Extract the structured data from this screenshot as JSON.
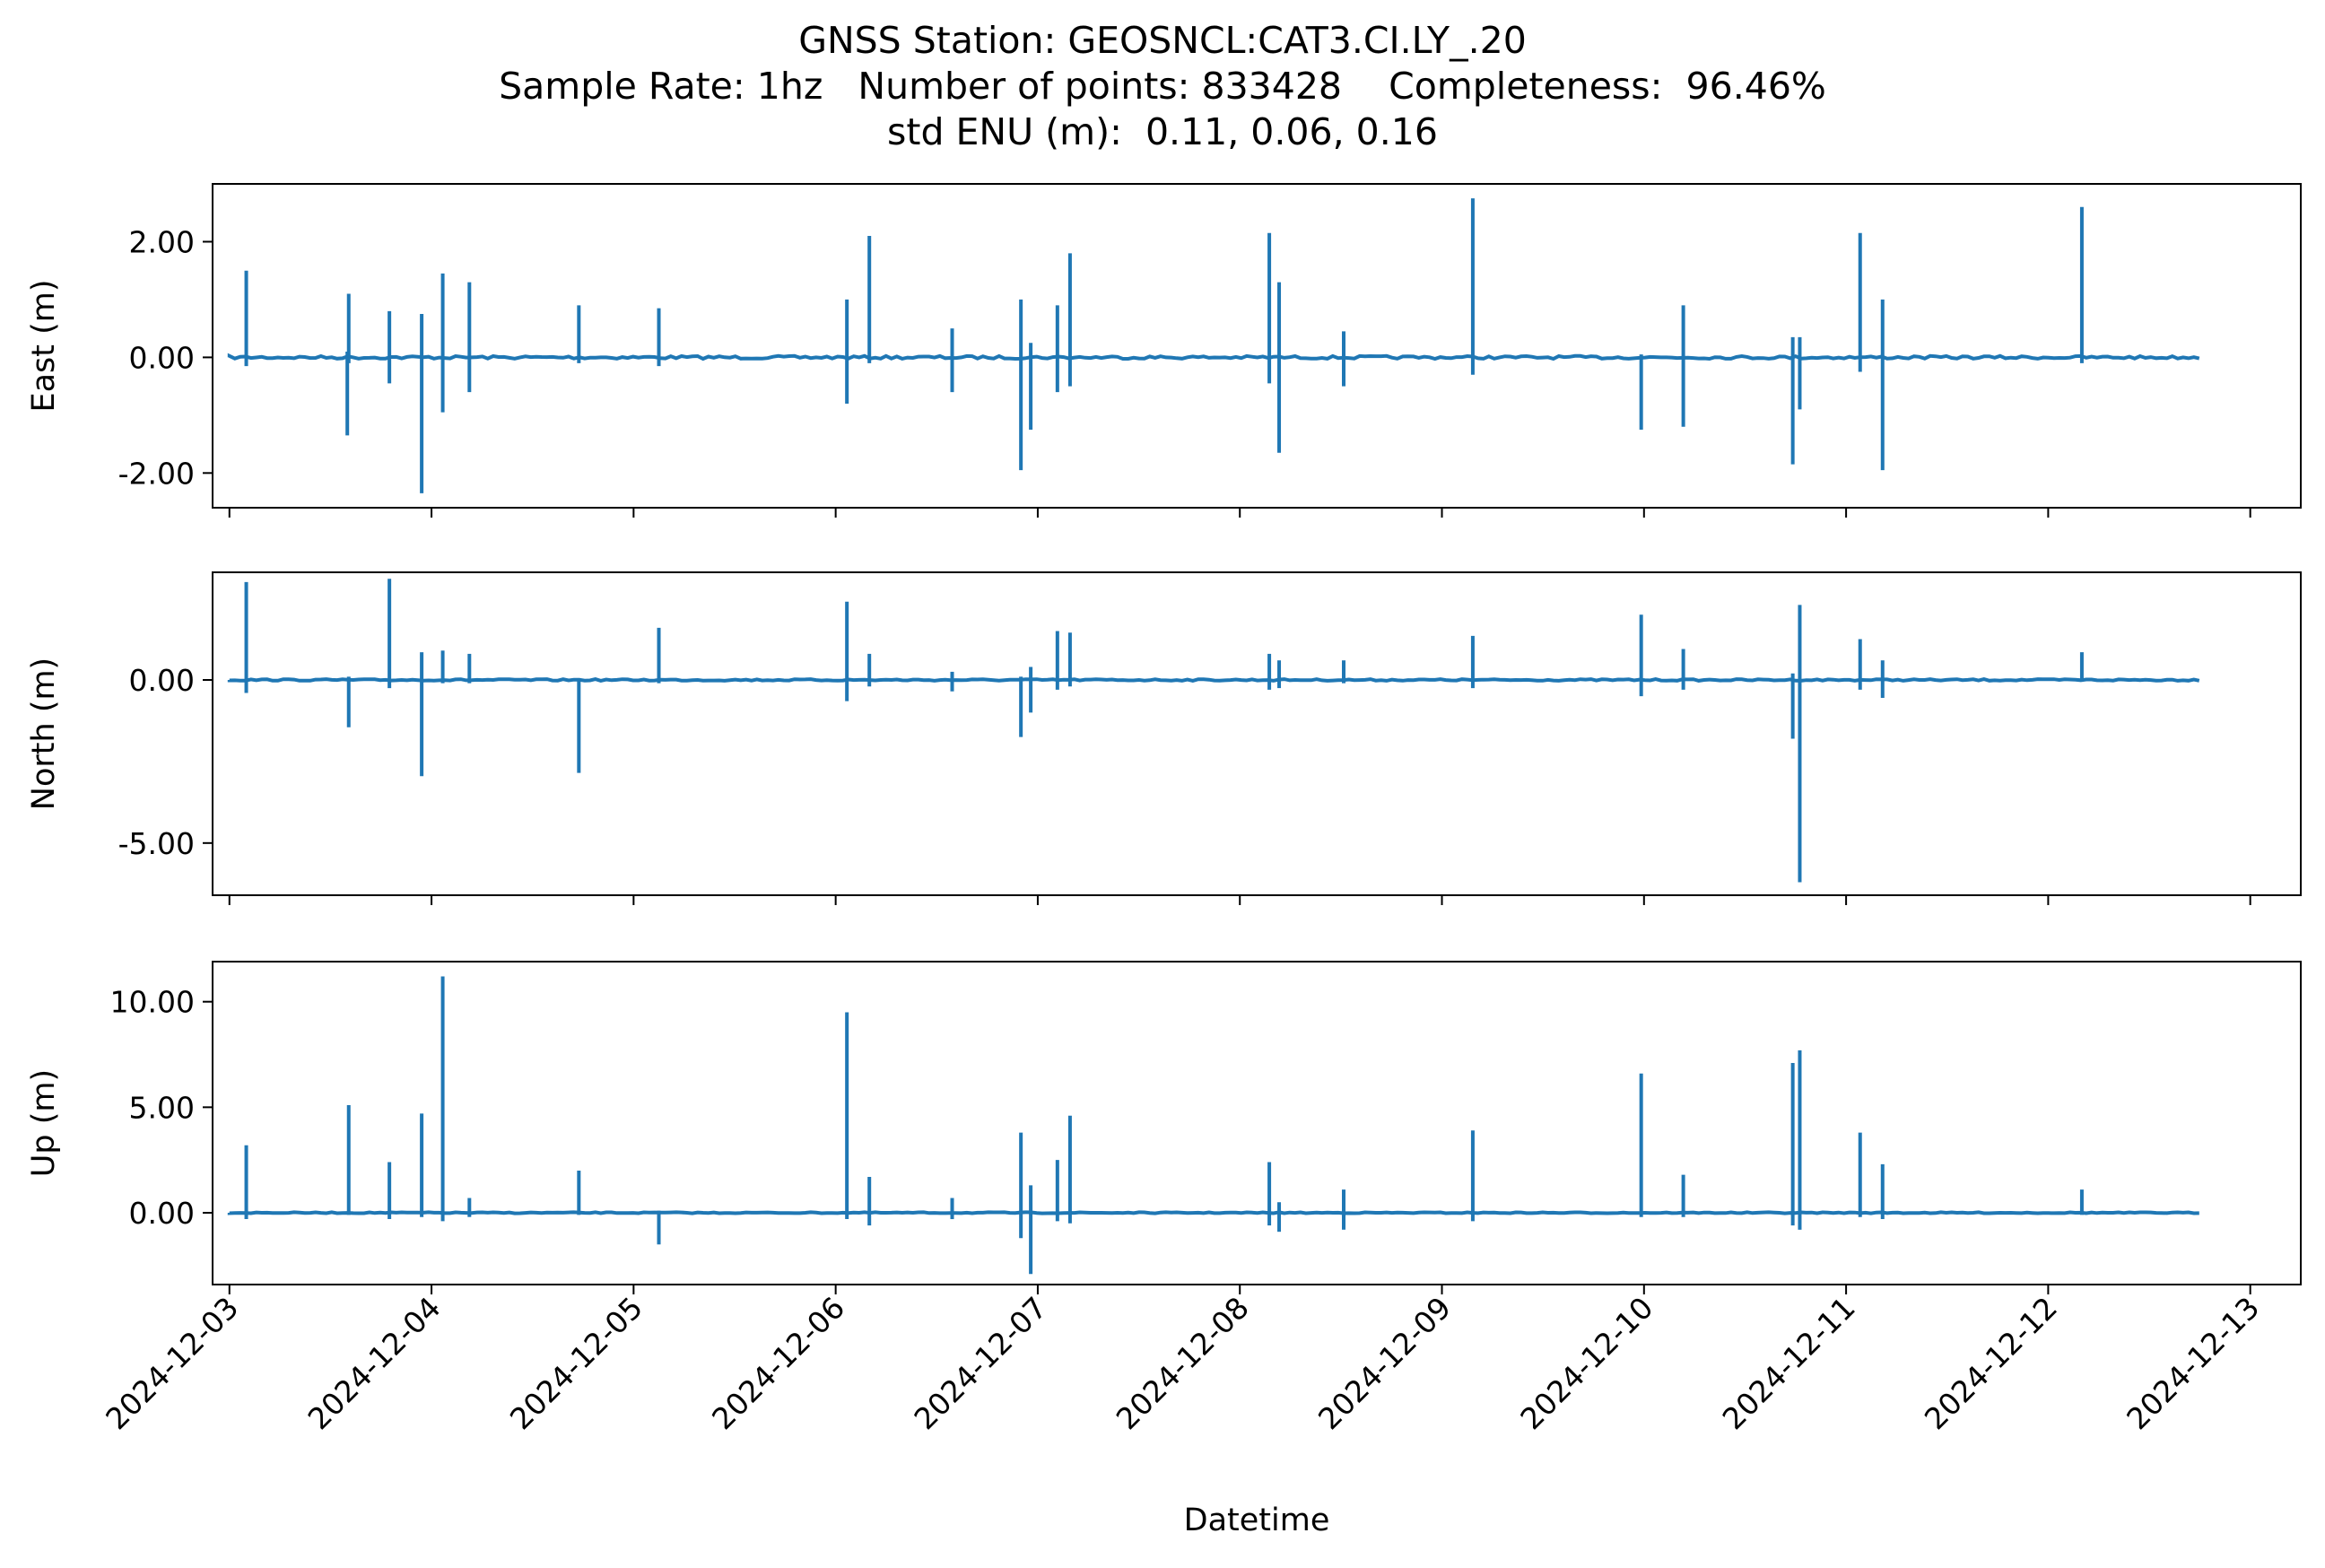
{
  "title_lines": [
    "GNSS Station: GEOSNCL:CAT3.CI.LY_.20",
    "Sample Rate: 1hz   Number of points: 833428    Completeness:  96.46%",
    "std ENU (m):  0.11, 0.06, 0.16"
  ],
  "chart_data": {
    "type": "line",
    "series_color": "#1f77b4",
    "xlabel": "Datetime",
    "x_range": [
      "2024-12-02T22:00",
      "2024-12-13T06:00"
    ],
    "x_ticks": [
      "2024-12-03",
      "2024-12-04",
      "2024-12-05",
      "2024-12-06",
      "2024-12-07",
      "2024-12-08",
      "2024-12-09",
      "2024-12-10",
      "2024-12-11",
      "2024-12-12",
      "2024-12-13"
    ],
    "grid": false,
    "panels": [
      {
        "ylabel": "East (m)",
        "ylim": [
          -2.6,
          3.0
        ],
        "y_ticks": [
          2.0,
          0.0,
          -2.0
        ],
        "y_tick_labels": [
          "2.00",
          "0.00",
          "-2.00"
        ],
        "spikes": [
          {
            "t": "2024-12-03T02:00",
            "hi": 1.5,
            "lo": -0.15
          },
          {
            "t": "2024-12-03T14:00",
            "hi": 0.1,
            "lo": -1.35
          },
          {
            "t": "2024-12-03T14:10",
            "hi": 1.1,
            "lo": -0.1
          },
          {
            "t": "2024-12-03T19:00",
            "hi": 0.8,
            "lo": -0.45
          },
          {
            "t": "2024-12-03T22:50",
            "hi": 0.75,
            "lo": -2.35
          },
          {
            "t": "2024-12-04T01:20",
            "hi": 1.45,
            "lo": -0.95
          },
          {
            "t": "2024-12-04T04:30",
            "hi": 1.3,
            "lo": -0.6
          },
          {
            "t": "2024-12-04T17:30",
            "hi": 0.9,
            "lo": -0.1
          },
          {
            "t": "2024-12-05T03:00",
            "hi": 0.85,
            "lo": -0.15
          },
          {
            "t": "2024-12-06T01:20",
            "hi": 1.0,
            "lo": -0.8
          },
          {
            "t": "2024-12-06T04:00",
            "hi": 2.1,
            "lo": -0.1
          },
          {
            "t": "2024-12-06T13:50",
            "hi": 0.5,
            "lo": -0.6
          },
          {
            "t": "2024-12-06T22:00",
            "hi": 1.0,
            "lo": -1.95
          },
          {
            "t": "2024-12-06T23:10",
            "hi": 0.25,
            "lo": -1.25
          },
          {
            "t": "2024-12-07T02:20",
            "hi": 0.9,
            "lo": -0.6
          },
          {
            "t": "2024-12-07T03:50",
            "hi": 1.8,
            "lo": -0.5
          },
          {
            "t": "2024-12-08T03:30",
            "hi": 2.15,
            "lo": -0.45
          },
          {
            "t": "2024-12-08T04:40",
            "hi": 1.3,
            "lo": -1.65
          },
          {
            "t": "2024-12-08T12:20",
            "hi": 0.45,
            "lo": -0.5
          },
          {
            "t": "2024-12-09T03:40",
            "hi": 2.75,
            "lo": -0.3
          },
          {
            "t": "2024-12-09T23:40",
            "hi": 0.05,
            "lo": -1.25
          },
          {
            "t": "2024-12-10T04:40",
            "hi": 0.9,
            "lo": -1.2
          },
          {
            "t": "2024-12-10T17:40",
            "hi": 0.35,
            "lo": -1.85
          },
          {
            "t": "2024-12-10T18:30",
            "hi": 0.35,
            "lo": -0.9
          },
          {
            "t": "2024-12-11T01:40",
            "hi": 2.15,
            "lo": -0.25
          },
          {
            "t": "2024-12-11T04:20",
            "hi": 1.0,
            "lo": -1.95
          },
          {
            "t": "2024-12-12T04:00",
            "hi": 2.6,
            "lo": -0.1
          }
        ]
      },
      {
        "ylabel": "North (m)",
        "ylim": [
          -6.6,
          3.3
        ],
        "y_ticks": [
          0.0,
          -5.0
        ],
        "y_tick_labels": [
          "0.00",
          "-5.00"
        ],
        "spikes": [
          {
            "t": "2024-12-03T02:00",
            "hi": 3.0,
            "lo": -0.4
          },
          {
            "t": "2024-12-03T14:10",
            "hi": 0.1,
            "lo": -1.45
          },
          {
            "t": "2024-12-03T19:00",
            "hi": 3.1,
            "lo": -0.25
          },
          {
            "t": "2024-12-03T22:50",
            "hi": 0.85,
            "lo": -2.95
          },
          {
            "t": "2024-12-04T01:20",
            "hi": 0.9,
            "lo": -0.1
          },
          {
            "t": "2024-12-04T04:30",
            "hi": 0.8,
            "lo": -0.1
          },
          {
            "t": "2024-12-04T17:30",
            "hi": 0.05,
            "lo": -2.85
          },
          {
            "t": "2024-12-05T03:00",
            "hi": 1.6,
            "lo": -0.1
          },
          {
            "t": "2024-12-06T01:20",
            "hi": 2.4,
            "lo": -0.65
          },
          {
            "t": "2024-12-06T04:00",
            "hi": 0.8,
            "lo": -0.2
          },
          {
            "t": "2024-12-06T13:50",
            "hi": 0.25,
            "lo": -0.35
          },
          {
            "t": "2024-12-06T22:00",
            "hi": 0.1,
            "lo": -1.75
          },
          {
            "t": "2024-12-06T23:10",
            "hi": 0.4,
            "lo": -1.0
          },
          {
            "t": "2024-12-07T02:20",
            "hi": 1.5,
            "lo": -0.3
          },
          {
            "t": "2024-12-07T03:50",
            "hi": 1.45,
            "lo": -0.2
          },
          {
            "t": "2024-12-08T03:30",
            "hi": 0.8,
            "lo": -0.3
          },
          {
            "t": "2024-12-08T04:40",
            "hi": 0.6,
            "lo": -0.25
          },
          {
            "t": "2024-12-08T12:20",
            "hi": 0.6,
            "lo": -0.1
          },
          {
            "t": "2024-12-09T03:40",
            "hi": 1.35,
            "lo": -0.25
          },
          {
            "t": "2024-12-09T23:40",
            "hi": 2.0,
            "lo": -0.5
          },
          {
            "t": "2024-12-10T04:40",
            "hi": 0.95,
            "lo": -0.3
          },
          {
            "t": "2024-12-10T17:40",
            "hi": 0.2,
            "lo": -1.8
          },
          {
            "t": "2024-12-10T18:30",
            "hi": 2.3,
            "lo": -6.2
          },
          {
            "t": "2024-12-11T01:40",
            "hi": 1.25,
            "lo": -0.3
          },
          {
            "t": "2024-12-11T04:20",
            "hi": 0.6,
            "lo": -0.55
          },
          {
            "t": "2024-12-12T04:00",
            "hi": 0.85,
            "lo": -0.05
          }
        ]
      },
      {
        "ylabel": "Up (m)",
        "ylim": [
          -3.4,
          11.9
        ],
        "y_ticks": [
          10.0,
          5.0,
          0.0
        ],
        "y_tick_labels": [
          "10.00",
          "5.00",
          "0.00"
        ],
        "spikes": [
          {
            "t": "2024-12-03T02:00",
            "hi": 3.2,
            "lo": -0.3
          },
          {
            "t": "2024-12-03T14:10",
            "hi": 5.1,
            "lo": -0.1
          },
          {
            "t": "2024-12-03T19:00",
            "hi": 2.4,
            "lo": -0.3
          },
          {
            "t": "2024-12-03T22:50",
            "hi": 4.7,
            "lo": -0.2
          },
          {
            "t": "2024-12-04T01:20",
            "hi": 11.2,
            "lo": -0.4
          },
          {
            "t": "2024-12-04T04:30",
            "hi": 0.7,
            "lo": -0.2
          },
          {
            "t": "2024-12-04T17:30",
            "hi": 2.0,
            "lo": -0.1
          },
          {
            "t": "2024-12-05T03:00",
            "hi": 0.1,
            "lo": -1.5
          },
          {
            "t": "2024-12-06T01:20",
            "hi": 9.5,
            "lo": -0.3
          },
          {
            "t": "2024-12-06T04:00",
            "hi": 1.7,
            "lo": -0.6
          },
          {
            "t": "2024-12-06T13:50",
            "hi": 0.7,
            "lo": -0.3
          },
          {
            "t": "2024-12-06T22:00",
            "hi": 3.8,
            "lo": -1.2
          },
          {
            "t": "2024-12-06T23:10",
            "hi": 1.3,
            "lo": -2.9
          },
          {
            "t": "2024-12-07T02:20",
            "hi": 2.5,
            "lo": -0.4
          },
          {
            "t": "2024-12-07T03:50",
            "hi": 4.6,
            "lo": -0.5
          },
          {
            "t": "2024-12-08T03:30",
            "hi": 2.4,
            "lo": -0.6
          },
          {
            "t": "2024-12-08T04:40",
            "hi": 0.5,
            "lo": -0.9
          },
          {
            "t": "2024-12-08T12:20",
            "hi": 1.1,
            "lo": -0.8
          },
          {
            "t": "2024-12-09T03:40",
            "hi": 3.9,
            "lo": -0.4
          },
          {
            "t": "2024-12-09T23:40",
            "hi": 6.6,
            "lo": -0.2
          },
          {
            "t": "2024-12-10T04:40",
            "hi": 1.8,
            "lo": -0.2
          },
          {
            "t": "2024-12-10T17:40",
            "hi": 7.1,
            "lo": -0.6
          },
          {
            "t": "2024-12-10T18:30",
            "hi": 7.7,
            "lo": -0.8
          },
          {
            "t": "2024-12-11T01:40",
            "hi": 3.8,
            "lo": -0.2
          },
          {
            "t": "2024-12-11T04:20",
            "hi": 2.3,
            "lo": -0.3
          },
          {
            "t": "2024-12-12T04:00",
            "hi": 1.1,
            "lo": -0.1
          }
        ]
      }
    ]
  }
}
